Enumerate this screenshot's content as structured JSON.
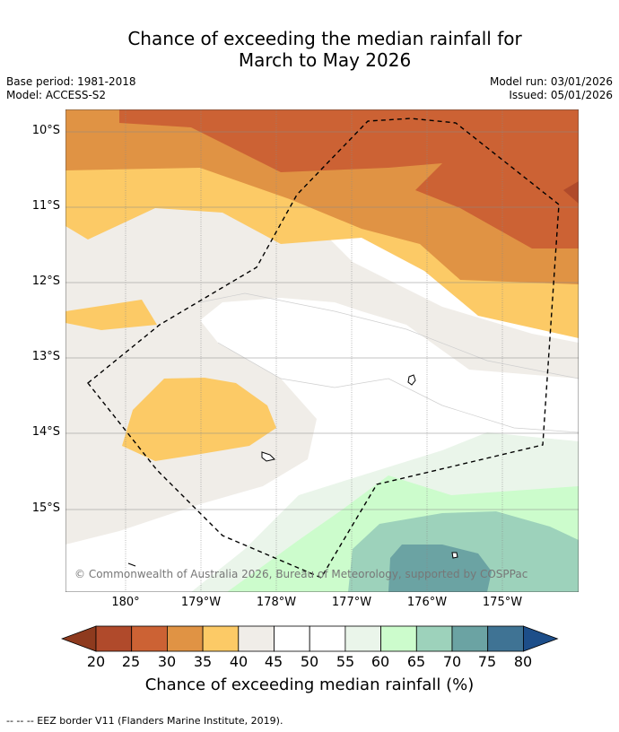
{
  "title_line1": "Chance of exceeding the median rainfall for",
  "title_line2": "March to May 2026",
  "base_period": "Base period: 1981-2018",
  "model": "Model: ACCESS-S2",
  "model_run": "Model run: 03/01/2026",
  "issued": "Issued: 05/01/2026",
  "lat_labels": [
    "10°S",
    "11°S",
    "12°S",
    "13°S",
    "14°S",
    "15°S"
  ],
  "lon_labels": [
    "180°",
    "179°W",
    "178°W",
    "177°W",
    "176°W",
    "175°W"
  ],
  "colorbar": {
    "ticks": [
      "20",
      "25",
      "30",
      "35",
      "40",
      "45",
      "50",
      "55",
      "60",
      "65",
      "70",
      "75",
      "80"
    ],
    "colors": [
      "#8e3a1e",
      "#b04a2b",
      "#cc6234",
      "#e09344",
      "#fcca66",
      "#f0ede8",
      "#ffffff",
      "#ffffff",
      "#eaf5ea",
      "#ccfccc",
      "#9dd2bb",
      "#6ba3a3",
      "#3f7394",
      "#1d4e89"
    ],
    "label": "Chance of exceeding median rainfall (%)"
  },
  "copyright": "© Commonwealth of Australia 2026, Bureau of Meteorology, supported by COSPPac",
  "footer": "--  --  -- EEZ border V11 (Flanders Marine Institute, 2019)."
}
